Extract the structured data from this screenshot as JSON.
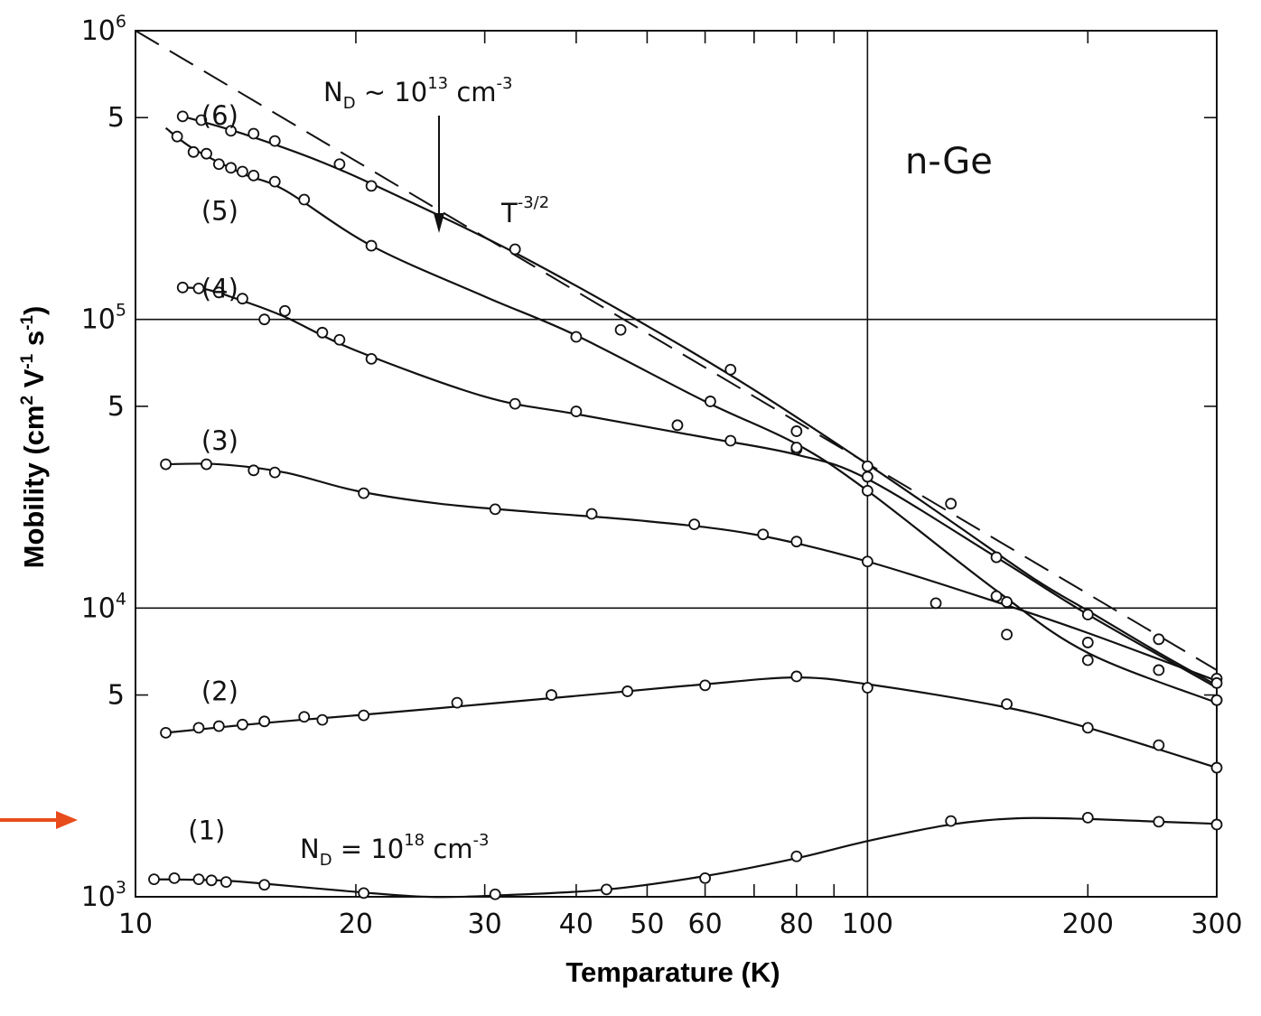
{
  "chart_data": {
    "type": "line",
    "title": "",
    "xlabel": "Temparature (K)",
    "ylabel": {
      "pre": "Mobility (cm",
      "sup1": "2",
      "mid": " V",
      "sup2": "-1",
      "mid2": " s",
      "sup3": "-1",
      "post": ")"
    },
    "x_scale": "log",
    "y_scale": "log",
    "xlim": [
      10,
      300
    ],
    "ylim": [
      1000,
      1000000
    ],
    "grid": "major lines at T = 100 K and mobility = 10^4, 10^5",
    "x_ticks": [
      {
        "value": 10,
        "label": "10"
      },
      {
        "value": 20,
        "label": "20"
      },
      {
        "value": 30,
        "label": "30"
      },
      {
        "value": 40,
        "label": "40"
      },
      {
        "value": 50,
        "label": "50"
      },
      {
        "value": 60,
        "label": "60"
      },
      {
        "value": 80,
        "label": "80"
      },
      {
        "value": 100,
        "label": "100"
      },
      {
        "value": 200,
        "label": "200"
      },
      {
        "value": 300,
        "label": "300"
      }
    ],
    "y_ticks": [
      {
        "value": 1000,
        "base": "10",
        "exp": "3"
      },
      {
        "value": 5000,
        "base": "5",
        "exp": ""
      },
      {
        "value": 10000,
        "base": "10",
        "exp": "4"
      },
      {
        "value": 50000,
        "base": "5",
        "exp": ""
      },
      {
        "value": 100000,
        "base": "10",
        "exp": "5"
      },
      {
        "value": 500000,
        "base": "5",
        "exp": ""
      },
      {
        "value": 1000000,
        "base": "10",
        "exp": "6"
      }
    ],
    "series": [
      {
        "name": "(1)",
        "label_at": [
          11.8,
          1700
        ],
        "points": [
          [
            10.6,
            1150
          ],
          [
            11.3,
            1160
          ],
          [
            12.2,
            1150
          ],
          [
            12.7,
            1140
          ],
          [
            13.3,
            1125
          ],
          [
            15,
            1100
          ],
          [
            20.5,
            1030
          ],
          [
            31,
            1020
          ],
          [
            44,
            1060
          ],
          [
            60,
            1160
          ],
          [
            80,
            1380
          ],
          [
            130,
            1830
          ],
          [
            200,
            1880
          ],
          [
            250,
            1820
          ],
          [
            300,
            1780
          ]
        ],
        "curve": [
          [
            10.6,
            1150
          ],
          [
            13,
            1140
          ],
          [
            15,
            1110
          ],
          [
            20,
            1040
          ],
          [
            25,
            1000
          ],
          [
            31,
            1010
          ],
          [
            44,
            1060
          ],
          [
            60,
            1180
          ],
          [
            80,
            1360
          ],
          [
            100,
            1560
          ],
          [
            130,
            1780
          ],
          [
            160,
            1870
          ],
          [
            200,
            1860
          ],
          [
            250,
            1820
          ],
          [
            300,
            1790
          ]
        ]
      },
      {
        "name": "(2)",
        "label_at": [
          12.3,
          5150
        ],
        "points": [
          [
            11,
            3700
          ],
          [
            12.2,
            3850
          ],
          [
            13,
            3900
          ],
          [
            14,
            3950
          ],
          [
            15,
            4050
          ],
          [
            17,
            4200
          ],
          [
            18,
            4100
          ],
          [
            20.5,
            4250
          ],
          [
            27.5,
            4700
          ],
          [
            37,
            5000
          ],
          [
            47,
            5150
          ],
          [
            60,
            5400
          ],
          [
            80,
            5800
          ],
          [
            100,
            5300
          ],
          [
            155,
            4650
          ],
          [
            200,
            3850
          ],
          [
            250,
            3350
          ],
          [
            300,
            2800
          ]
        ],
        "curve": [
          [
            11,
            3700
          ],
          [
            15,
            4000
          ],
          [
            20,
            4250
          ],
          [
            30,
            4650
          ],
          [
            45,
            5100
          ],
          [
            60,
            5450
          ],
          [
            80,
            5750
          ],
          [
            100,
            5450
          ],
          [
            150,
            4600
          ],
          [
            200,
            3850
          ],
          [
            300,
            2800
          ]
        ]
      },
      {
        "name": "(3)",
        "label_at": [
          12.3,
          38000
        ],
        "points": [
          [
            11,
            31500
          ],
          [
            12.5,
            31500
          ],
          [
            14.5,
            30000
          ],
          [
            15.5,
            29500
          ],
          [
            20.5,
            25000
          ],
          [
            31,
            22000
          ],
          [
            42,
            21200
          ],
          [
            58,
            19500
          ],
          [
            72,
            18000
          ],
          [
            80,
            17000
          ],
          [
            100,
            14500
          ],
          [
            124,
            10400
          ],
          [
            155,
            8100
          ],
          [
            300,
            5700
          ]
        ],
        "curve": [
          [
            11,
            31500
          ],
          [
            13,
            31500
          ],
          [
            16,
            29500
          ],
          [
            20,
            25500
          ],
          [
            26,
            23000
          ],
          [
            35,
            21500
          ],
          [
            50,
            20000
          ],
          [
            70,
            18000
          ],
          [
            100,
            14500
          ],
          [
            150,
            10500
          ],
          [
            200,
            8200
          ],
          [
            300,
            5600
          ]
        ]
      },
      {
        "name": "(4)",
        "label_at": [
          12.3,
          128000
        ],
        "points": [
          [
            11.6,
            129000
          ],
          [
            12.2,
            128000
          ],
          [
            13,
            124000
          ],
          [
            14,
            118000
          ],
          [
            15,
            100000
          ],
          [
            16,
            107000
          ],
          [
            18,
            90000
          ],
          [
            19,
            85000
          ],
          [
            21,
            73000
          ],
          [
            33,
            51000
          ],
          [
            40,
            48000
          ],
          [
            55,
            43000
          ],
          [
            65,
            38000
          ],
          [
            80,
            35500
          ],
          [
            100,
            28500
          ],
          [
            155,
            10500
          ],
          [
            200,
            7600
          ],
          [
            300,
            5500
          ]
        ],
        "curve": [
          [
            11.6,
            129000
          ],
          [
            12.5,
            127000
          ],
          [
            14,
            116000
          ],
          [
            16,
            102000
          ],
          [
            20,
            78000
          ],
          [
            30,
            54000
          ],
          [
            40,
            47000
          ],
          [
            60,
            39000
          ],
          [
            80,
            34000
          ],
          [
            100,
            28000
          ],
          [
            150,
            15000
          ],
          [
            200,
            9500
          ],
          [
            300,
            5300
          ]
        ]
      },
      {
        "name": "(5)",
        "label_at": [
          12.3,
          238000
        ],
        "points": [
          [
            11.4,
            430000
          ],
          [
            12,
            380000
          ],
          [
            12.5,
            375000
          ],
          [
            13,
            345000
          ],
          [
            13.5,
            335000
          ],
          [
            14,
            325000
          ],
          [
            14.5,
            315000
          ],
          [
            15.5,
            300000
          ],
          [
            17,
            260000
          ],
          [
            21,
            180000
          ],
          [
            40,
            87000
          ],
          [
            61,
            52000
          ],
          [
            80,
            36000
          ],
          [
            100,
            25500
          ],
          [
            150,
            11000
          ],
          [
            200,
            6600
          ],
          [
            250,
            6100
          ],
          [
            300,
            4800
          ]
        ],
        "curve": [
          [
            11,
            460000
          ],
          [
            12,
            390000
          ],
          [
            14,
            320000
          ],
          [
            16,
            280000
          ],
          [
            21,
            180000
          ],
          [
            30,
            120000
          ],
          [
            40,
            88000
          ],
          [
            60,
            52000
          ],
          [
            80,
            37000
          ],
          [
            100,
            25500
          ],
          [
            150,
            11500
          ],
          [
            200,
            7000
          ],
          [
            300,
            4700
          ]
        ]
      },
      {
        "name": "(6)",
        "label_at": [
          12.3,
          508000
        ],
        "points": [
          [
            11.6,
            505000
          ],
          [
            12.3,
            490000
          ],
          [
            13.5,
            450000
          ],
          [
            14.5,
            440000
          ],
          [
            15.5,
            415000
          ],
          [
            19,
            345000
          ],
          [
            21,
            290000
          ],
          [
            33,
            175000
          ],
          [
            46,
            92000
          ],
          [
            65,
            67000
          ],
          [
            80,
            41000
          ],
          [
            100,
            31000
          ],
          [
            130,
            23000
          ],
          [
            150,
            15000
          ],
          [
            200,
            9500
          ],
          [
            250,
            7800
          ],
          [
            300,
            4800
          ]
        ],
        "curve": [
          [
            11.6,
            505000
          ],
          [
            14,
            440000
          ],
          [
            18,
            350000
          ],
          [
            23,
            265000
          ],
          [
            33,
            170000
          ],
          [
            50,
            95000
          ],
          [
            70,
            57000
          ],
          [
            100,
            31500
          ],
          [
            130,
            20000
          ],
          [
            170,
            12500
          ],
          [
            200,
            9800
          ],
          [
            250,
            7000
          ],
          [
            300,
            5400
          ]
        ]
      }
    ],
    "reference_line": {
      "name": "T^-3/2",
      "style": "dashed",
      "points": [
        [
          10,
          1000000
        ],
        [
          300,
          6100
        ]
      ]
    },
    "annotations": {
      "nd_low": {
        "base": "N",
        "sub": "D",
        "mid": " ~ 10",
        "sup": "13",
        "post": " cm",
        "sup2": "-3"
      },
      "nd_high": {
        "base": "N",
        "sub": "D",
        "mid": " = 10",
        "sup": "18",
        "post": " cm",
        "sup2": "-3"
      },
      "t_power": {
        "base": "T",
        "sup": "-3/2"
      },
      "material": "n-Ge"
    },
    "colors": {
      "ink": "#111111",
      "marker_arrow": "#e84c1c"
    }
  }
}
